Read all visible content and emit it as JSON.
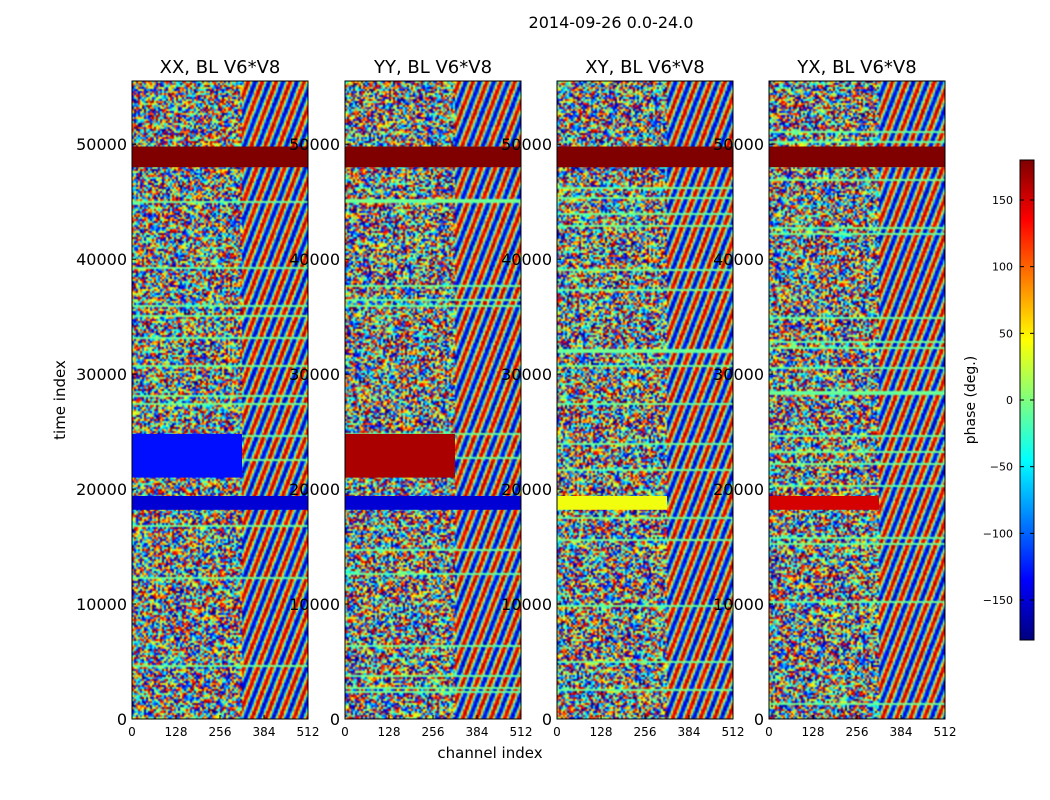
{
  "chart_data": {
    "type": "heatmap",
    "suptitle": "2014-09-26 0.0-24.0",
    "xlabel": "channel index",
    "ylabel": "time index",
    "xlim": [
      0,
      512
    ],
    "ylim": [
      0,
      55500
    ],
    "xticks": [
      0,
      128,
      256,
      384,
      512
    ],
    "xtick_labels": [
      "0",
      "128",
      "256",
      "384",
      "512"
    ],
    "yticks": [
      0,
      10000,
      20000,
      30000,
      40000,
      50000
    ],
    "ytick_labels": [
      "0",
      "10000",
      "20000",
      "30000",
      "40000",
      "50000"
    ],
    "panels": [
      {
        "title": "XX, BL V6*V8",
        "polarization": "XX",
        "baseline": "V6*V8"
      },
      {
        "title": "YY, BL V6*V8",
        "polarization": "YY",
        "baseline": "V6*V8"
      },
      {
        "title": "XY, BL V6*V8",
        "polarization": "XY",
        "baseline": "V6*V8"
      },
      {
        "title": "YX, BL V6*V8",
        "polarization": "YX",
        "baseline": "V6*V8"
      }
    ],
    "colorbar": {
      "label": "phase (deg.)",
      "range": [
        -180,
        180
      ],
      "ticks": [
        -150,
        -100,
        -50,
        0,
        50,
        100,
        150
      ],
      "tick_labels": [
        "−150",
        "−100",
        "−50",
        "0",
        "50",
        "100",
        "150"
      ],
      "colormap": "jet"
    },
    "features": [
      {
        "panels": [
          "XX",
          "YY",
          "XY",
          "YX"
        ],
        "time_range": [
          48000,
          49800
        ],
        "channel_range": [
          0,
          512
        ],
        "phase": 180
      },
      {
        "panels": [
          "XX"
        ],
        "time_range": [
          21000,
          24800
        ],
        "channel_range": [
          0,
          320
        ],
        "phase": -130
      },
      {
        "panels": [
          "YY"
        ],
        "time_range": [
          21000,
          24800
        ],
        "channel_range": [
          0,
          320
        ],
        "phase": 165
      },
      {
        "panels": [
          "XX",
          "YY"
        ],
        "time_range": [
          18200,
          19400
        ],
        "channel_range": [
          0,
          512
        ],
        "phase": -150
      },
      {
        "panels": [
          "YX"
        ],
        "time_range": [
          18200,
          19400
        ],
        "channel_range": [
          0,
          320
        ],
        "phase": 150
      },
      {
        "panels": [
          "XY"
        ],
        "time_range": [
          18200,
          19400
        ],
        "channel_range": [
          0,
          320
        ],
        "phase": 40
      }
    ]
  }
}
